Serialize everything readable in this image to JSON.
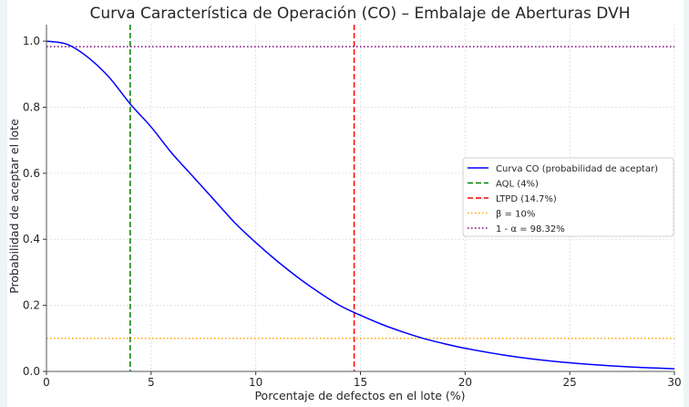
{
  "chart_data": {
    "type": "line",
    "title": "Curva Característica de Operación (CO) – Embalaje de Aberturas DVH",
    "xlabel": "Porcentaje de defectos en el lote (%)",
    "ylabel": "Probabilidad de aceptar el lote",
    "xlim": [
      0,
      30
    ],
    "ylim": [
      0,
      1.05
    ],
    "xticks": [
      0,
      5,
      10,
      15,
      20,
      25,
      30
    ],
    "xtick_labels": [
      "0",
      "5",
      "10",
      "15",
      "20",
      "25",
      "30"
    ],
    "yticks": [
      0,
      0.2,
      0.4,
      0.6,
      0.8,
      1.0
    ],
    "ytick_labels": [
      "0.0",
      "0.2",
      "0.4",
      "0.6",
      "0.8",
      "1.0"
    ],
    "grid": true,
    "legend_position": "center-right",
    "series": [
      {
        "name": "Curva CO (probabilidad de aceptar)",
        "color": "#0000ff",
        "style": "solid",
        "x": [
          0,
          1,
          2,
          3,
          4,
          5,
          6,
          7,
          8,
          9,
          10,
          11,
          12,
          13,
          14,
          15,
          16,
          17,
          18,
          19,
          20,
          22,
          24,
          26,
          28,
          30
        ],
        "y": [
          1.0,
          0.99,
          0.95,
          0.89,
          0.81,
          0.74,
          0.66,
          0.59,
          0.52,
          0.45,
          0.39,
          0.335,
          0.285,
          0.24,
          0.2,
          0.17,
          0.143,
          0.12,
          0.1,
          0.084,
          0.07,
          0.048,
          0.032,
          0.021,
          0.013,
          0.008
        ]
      }
    ],
    "reference_lines": [
      {
        "name": "AQL (4%)",
        "orientation": "vertical",
        "value": 4,
        "color": "#008000",
        "style": "dashed"
      },
      {
        "name": "LTPD (14.7%)",
        "orientation": "vertical",
        "value": 14.7,
        "color": "#ff0000",
        "style": "dashed"
      },
      {
        "name": "β = 10%",
        "orientation": "horizontal",
        "value": 0.1,
        "color": "#ffa500",
        "style": "dotted"
      },
      {
        "name": "1 - α = 98.32%",
        "orientation": "horizontal",
        "value": 0.9832,
        "color": "#800080",
        "style": "dotted"
      }
    ]
  }
}
